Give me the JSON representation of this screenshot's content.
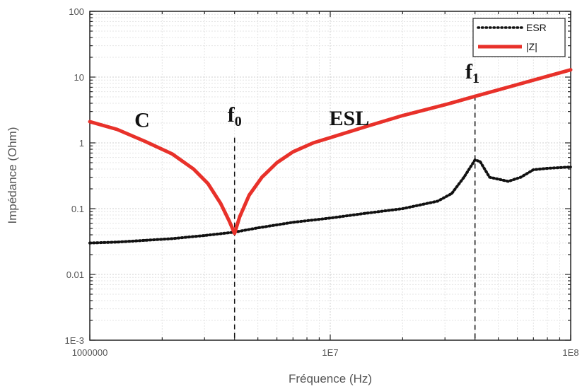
{
  "chart_data": {
    "type": "line",
    "xlabel": "Fréquence (Hz)",
    "ylabel": "Impédance (Ohm)",
    "xscale": "log",
    "yscale": "log",
    "xlim": [
      1000000,
      100000000
    ],
    "ylim": [
      0.001,
      100
    ],
    "grid": true,
    "legend_position": "top-right",
    "x_tick_labels": [
      {
        "value": 1000000,
        "label": "1000000"
      },
      {
        "value": 10000000,
        "label": "1E7"
      },
      {
        "value": 100000000,
        "label": "1E8"
      }
    ],
    "y_tick_labels": [
      {
        "value": 100,
        "label": "100"
      },
      {
        "value": 10,
        "label": "10"
      },
      {
        "value": 1,
        "label": "1"
      },
      {
        "value": 0.1,
        "label": "0.1"
      },
      {
        "value": 0.01,
        "label": "0.01"
      },
      {
        "value": 0.001,
        "label": "1E-3"
      }
    ],
    "series": [
      {
        "name": "ESR",
        "color": "#111111",
        "style": "dotted",
        "x": [
          1000000,
          1300000,
          1700000,
          2200000,
          3000000,
          4000000,
          5000000,
          7000000,
          10000000,
          14000000,
          20000000,
          28000000,
          32000000,
          36000000,
          40000000,
          42000000,
          46000000,
          55000000,
          62000000,
          70000000,
          80000000,
          100000000
        ],
        "y": [
          0.03,
          0.031,
          0.033,
          0.035,
          0.039,
          0.044,
          0.051,
          0.062,
          0.072,
          0.085,
          0.1,
          0.13,
          0.17,
          0.3,
          0.55,
          0.52,
          0.3,
          0.26,
          0.3,
          0.39,
          0.41,
          0.43
        ]
      },
      {
        "name": "|Z|",
        "color": "#e8312a",
        "style": "solid",
        "x": [
          1000000,
          1300000,
          1700000,
          2200000,
          2700000,
          3100000,
          3500000,
          3800000,
          4000000,
          4200000,
          4600000,
          5200000,
          6000000,
          7000000,
          8500000,
          10000000,
          15000000,
          20000000,
          30000000,
          40000000,
          60000000,
          80000000,
          100000000
        ],
        "y": [
          2.1,
          1.6,
          1.05,
          0.68,
          0.4,
          0.24,
          0.12,
          0.065,
          0.042,
          0.075,
          0.16,
          0.3,
          0.5,
          0.73,
          1.0,
          1.2,
          1.9,
          2.6,
          3.8,
          5.1,
          7.7,
          10.3,
          12.9
        ]
      }
    ],
    "annotations": [
      {
        "text": "C",
        "x": 1650000,
        "y": 1.75
      },
      {
        "text": "ESL",
        "x": 12000000,
        "y": 1.85
      },
      {
        "text": "f0",
        "base": "f",
        "sub": "0",
        "x": 4000000,
        "y": 2.1
      },
      {
        "text": "f1",
        "base": "f",
        "sub": "1",
        "x": 39000000,
        "y": 9.5
      }
    ],
    "vlines": [
      {
        "x": 4000000,
        "y_top": 1.2,
        "y_bottom": 0.001
      },
      {
        "x": 40000000,
        "y_top": 5.2,
        "y_bottom": 0.001
      }
    ]
  }
}
